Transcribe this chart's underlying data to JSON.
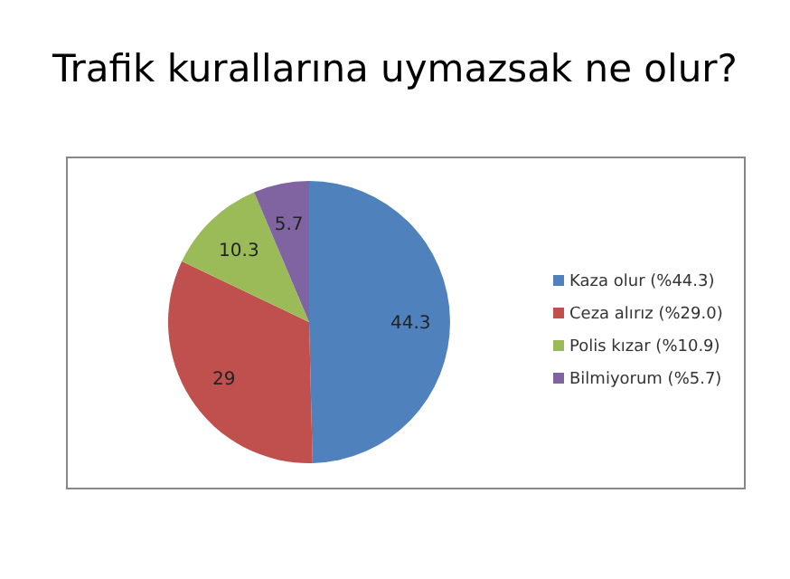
{
  "chart_data": {
    "type": "pie",
    "title": "Trafik kurallarına uymazsak ne olur?",
    "categories": [
      "Kaza olur (%44.3)",
      "Ceza alırız (%29.0)",
      "Polis kızar (%10.9)",
      "Bilmiyorum (%5.7)"
    ],
    "values": [
      44.3,
      29,
      10.3,
      5.7
    ],
    "colors": [
      "#4f81bd",
      "#c0504d",
      "#9bbb59",
      "#8064a2"
    ],
    "data_labels": true,
    "legend": "right"
  }
}
